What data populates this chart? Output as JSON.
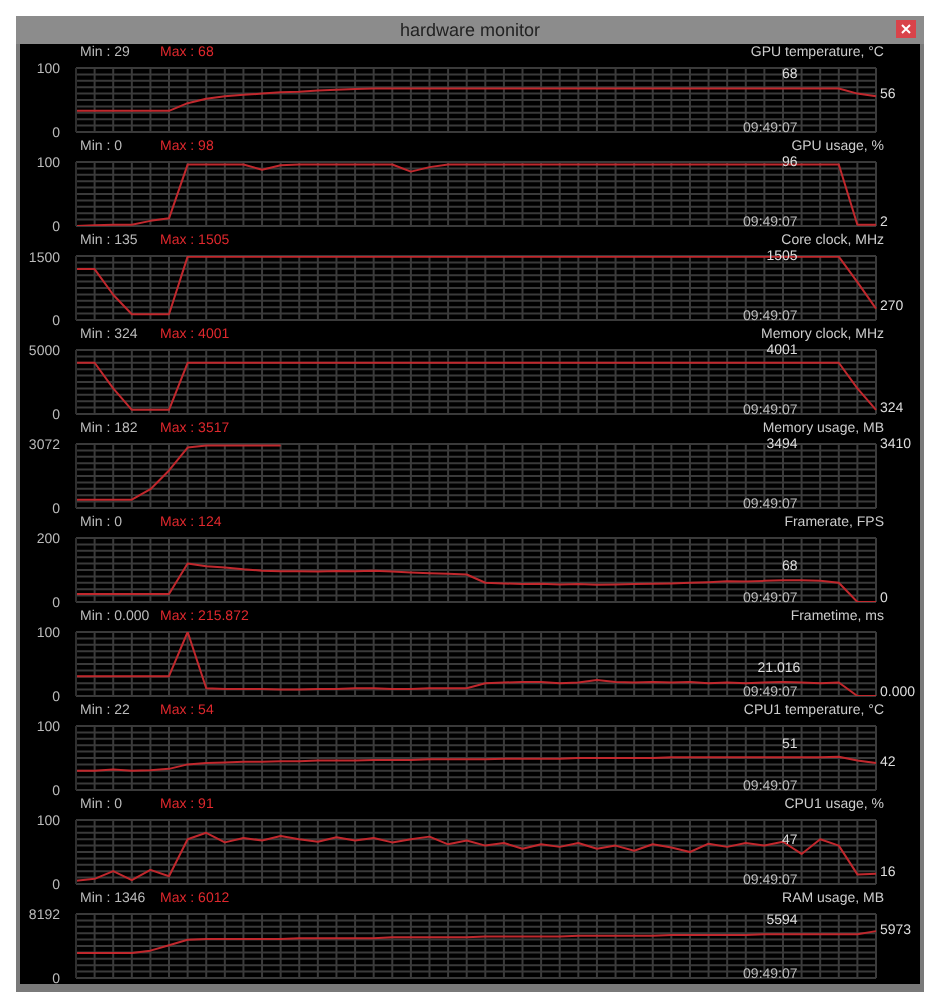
{
  "chart_data": [
    {
      "type": "line",
      "title": "GPU temperature, °C",
      "subtitle": "hardware monitor",
      "color": "#c0282d",
      "grid": true,
      "tick_labels": "y",
      "ylim": [
        0,
        100
      ],
      "yticks": [
        0,
        100
      ],
      "annotations": [
        "Min : 29",
        "Max : 68",
        "68",
        "56",
        "09:49:07"
      ],
      "categories": [
        null,
        null,
        null,
        null,
        null,
        null,
        null,
        null,
        null,
        null,
        null,
        null,
        null,
        null,
        null,
        null,
        null,
        null,
        null,
        null,
        null,
        null,
        null,
        null,
        null,
        null,
        null,
        null,
        null,
        null,
        null,
        null,
        null,
        null,
        null,
        null,
        null,
        null,
        null,
        null,
        null,
        null,
        null,
        null
      ],
      "values": [
        33,
        33,
        33,
        33,
        33,
        33,
        45,
        52,
        56,
        58,
        60,
        62,
        63,
        65,
        66,
        67,
        68,
        68,
        68,
        68,
        68,
        68,
        68,
        68,
        68,
        68,
        68,
        68,
        68,
        68,
        68,
        68,
        68,
        68,
        68,
        68,
        68,
        68,
        68,
        68,
        68,
        68,
        60,
        56
      ]
    },
    {
      "type": "line",
      "title": "GPU usage, %",
      "color": "#c0282d",
      "grid": true,
      "tick_labels": "y",
      "ylim": [
        0,
        100
      ],
      "yticks": [
        0,
        100
      ],
      "annotations": [
        "Min : 0",
        "Max : 98",
        "96",
        "2",
        "09:49:07"
      ],
      "categories": [
        null,
        null,
        null,
        null,
        null,
        null,
        null,
        null,
        null,
        null,
        null,
        null,
        null,
        null,
        null,
        null,
        null,
        null,
        null,
        null,
        null,
        null,
        null,
        null,
        null,
        null,
        null,
        null,
        null,
        null,
        null,
        null,
        null,
        null,
        null,
        null,
        null,
        null,
        null,
        null,
        null,
        null,
        null,
        null
      ],
      "values": [
        0,
        1,
        2,
        2,
        8,
        12,
        96,
        96,
        96,
        96,
        88,
        95,
        96,
        96,
        96,
        96,
        96,
        96,
        85,
        92,
        96,
        96,
        96,
        96,
        96,
        96,
        96,
        96,
        96,
        96,
        96,
        96,
        96,
        96,
        96,
        96,
        96,
        96,
        96,
        96,
        96,
        96,
        2,
        2
      ]
    },
    {
      "type": "line",
      "title": "Core clock, MHz",
      "color": "#c0282d",
      "grid": true,
      "tick_labels": "y",
      "ylim": [
        0,
        1520
      ],
      "yticks": [
        0,
        1500
      ],
      "annotations": [
        "Min : 135",
        "Max : 1505",
        "1505",
        "270",
        "09:49:07"
      ],
      "categories": [
        null,
        null,
        null,
        null,
        null,
        null,
        null,
        null,
        null,
        null,
        null,
        null,
        null,
        null,
        null,
        null,
        null,
        null,
        null,
        null,
        null,
        null,
        null,
        null,
        null,
        null,
        null,
        null,
        null,
        null,
        null,
        null,
        null,
        null,
        null,
        null,
        null,
        null,
        null,
        null,
        null,
        null,
        null,
        null
      ],
      "values": [
        1210,
        1210,
        600,
        135,
        135,
        135,
        1505,
        1505,
        1505,
        1505,
        1505,
        1505,
        1505,
        1505,
        1505,
        1505,
        1505,
        1505,
        1505,
        1505,
        1505,
        1505,
        1505,
        1505,
        1505,
        1505,
        1505,
        1505,
        1505,
        1505,
        1505,
        1505,
        1505,
        1505,
        1505,
        1505,
        1505,
        1505,
        1505,
        1505,
        1505,
        1505,
        900,
        270
      ]
    },
    {
      "type": "line",
      "title": "Memory clock, MHz",
      "color": "#c0282d",
      "grid": true,
      "tick_labels": "y",
      "ylim": [
        0,
        5000
      ],
      "yticks": [
        0,
        5000
      ],
      "annotations": [
        "Min : 324",
        "Max : 4001",
        "4001",
        "324",
        "09:49:07"
      ],
      "categories": [
        null,
        null,
        null,
        null,
        null,
        null,
        null,
        null,
        null,
        null,
        null,
        null,
        null,
        null,
        null,
        null,
        null,
        null,
        null,
        null,
        null,
        null,
        null,
        null,
        null,
        null,
        null,
        null,
        null,
        null,
        null,
        null,
        null,
        null,
        null,
        null,
        null,
        null,
        null,
        null,
        null,
        null,
        null,
        null
      ],
      "values": [
        4001,
        4001,
        2000,
        324,
        324,
        324,
        4001,
        4001,
        4001,
        4001,
        4001,
        4001,
        4001,
        4001,
        4001,
        4001,
        4001,
        4001,
        4001,
        4001,
        4001,
        4001,
        4001,
        4001,
        4001,
        4001,
        4001,
        4001,
        4001,
        4001,
        4001,
        4001,
        4001,
        4001,
        4001,
        4001,
        4001,
        4001,
        4001,
        4001,
        4001,
        4001,
        2000,
        324
      ]
    },
    {
      "type": "line",
      "title": "Memory usage, MB",
      "color": "#c0282d",
      "grid": true,
      "tick_labels": "y",
      "ylim": [
        0,
        3072
      ],
      "yticks": [
        0,
        3072
      ],
      "annotations": [
        "Min : 182",
        "Max : 3517",
        "3494",
        "3410",
        "09:49:07"
      ],
      "categories": [
        null,
        null,
        null,
        null,
        null,
        null,
        null,
        null,
        null,
        null,
        null,
        null,
        null,
        null,
        null,
        null,
        null,
        null,
        null,
        null,
        null,
        null,
        null,
        null,
        null,
        null,
        null,
        null,
        null,
        null,
        null,
        null,
        null,
        null,
        null,
        null,
        null,
        null,
        null,
        null,
        null,
        null,
        null,
        null
      ],
      "values": [
        400,
        400,
        400,
        400,
        900,
        1800,
        2900,
        3000,
        3000,
        3000,
        3000,
        3000,
        null,
        null,
        null,
        null,
        null,
        null,
        null,
        null,
        null,
        null,
        null,
        null,
        null,
        null,
        null,
        null,
        null,
        null,
        null,
        null,
        null,
        null,
        null,
        null,
        null,
        null,
        null,
        null,
        null,
        null,
        null,
        null
      ]
    },
    {
      "type": "line",
      "title": "Framerate, FPS",
      "color": "#c0282d",
      "grid": true,
      "tick_labels": "y",
      "ylim": [
        0,
        200
      ],
      "yticks": [
        0,
        200
      ],
      "annotations": [
        "Min : 0",
        "Max : 124",
        "68",
        "0",
        "09:49:07"
      ],
      "categories": [
        null,
        null,
        null,
        null,
        null,
        null,
        null,
        null,
        null,
        null,
        null,
        null,
        null,
        null,
        null,
        null,
        null,
        null,
        null,
        null,
        null,
        null,
        null,
        null,
        null,
        null,
        null,
        null,
        null,
        null,
        null,
        null,
        null,
        null,
        null,
        null,
        null,
        null,
        null,
        null,
        null,
        null,
        null,
        null
      ],
      "values": [
        25,
        25,
        25,
        25,
        25,
        25,
        120,
        112,
        108,
        102,
        98,
        96,
        96,
        95,
        97,
        96,
        98,
        95,
        92,
        90,
        88,
        86,
        60,
        58,
        56,
        57,
        55,
        56,
        54,
        55,
        56,
        57,
        58,
        60,
        62,
        65,
        64,
        66,
        68,
        68,
        66,
        60,
        0,
        0
      ]
    },
    {
      "type": "line",
      "title": "Frametime, ms",
      "color": "#c0282d",
      "grid": true,
      "tick_labels": "y",
      "ylim": [
        0,
        100
      ],
      "yticks": [
        0,
        100
      ],
      "annotations": [
        "Min : 0.000",
        "Max : 215.872",
        "21.016",
        "0.000",
        "09:49:07"
      ],
      "categories": [
        null,
        null,
        null,
        null,
        null,
        null,
        null,
        null,
        null,
        null,
        null,
        null,
        null,
        null,
        null,
        null,
        null,
        null,
        null,
        null,
        null,
        null,
        null,
        null,
        null,
        null,
        null,
        null,
        null,
        null,
        null,
        null,
        null,
        null,
        null,
        null,
        null,
        null,
        null,
        null,
        null,
        null,
        null,
        null
      ],
      "values": [
        31,
        31,
        31,
        31,
        31,
        31,
        100,
        12,
        11,
        11,
        11,
        10,
        10,
        11,
        11,
        12,
        12,
        11,
        11,
        12,
        12,
        12,
        20,
        21,
        22,
        22,
        20,
        21,
        25,
        22,
        21,
        22,
        21,
        22,
        20,
        21,
        20,
        21,
        22,
        21,
        20,
        21,
        0,
        0
      ]
    },
    {
      "type": "line",
      "title": "CPU1 temperature, °C",
      "color": "#c0282d",
      "grid": true,
      "tick_labels": "y",
      "ylim": [
        0,
        100
      ],
      "yticks": [
        0,
        100
      ],
      "annotations": [
        "Min : 22",
        "Max : 54",
        "51",
        "42",
        "09:49:07"
      ],
      "categories": [
        null,
        null,
        null,
        null,
        null,
        null,
        null,
        null,
        null,
        null,
        null,
        null,
        null,
        null,
        null,
        null,
        null,
        null,
        null,
        null,
        null,
        null,
        null,
        null,
        null,
        null,
        null,
        null,
        null,
        null,
        null,
        null,
        null,
        null,
        null,
        null,
        null,
        null,
        null,
        null,
        null,
        null,
        null,
        null
      ],
      "values": [
        30,
        30,
        32,
        30,
        31,
        33,
        40,
        42,
        43,
        44,
        44,
        45,
        45,
        46,
        46,
        46,
        47,
        47,
        47,
        48,
        48,
        48,
        48,
        49,
        49,
        49,
        49,
        50,
        50,
        50,
        50,
        50,
        51,
        51,
        51,
        51,
        51,
        51,
        51,
        51,
        51,
        52,
        46,
        42
      ]
    },
    {
      "type": "line",
      "title": "CPU1 usage, %",
      "color": "#c0282d",
      "grid": true,
      "tick_labels": "y",
      "ylim": [
        0,
        100
      ],
      "yticks": [
        0,
        100
      ],
      "annotations": [
        "Min : 0",
        "Max : 91",
        "47",
        "16",
        "09:49:07"
      ],
      "categories": [
        null,
        null,
        null,
        null,
        null,
        null,
        null,
        null,
        null,
        null,
        null,
        null,
        null,
        null,
        null,
        null,
        null,
        null,
        null,
        null,
        null,
        null,
        null,
        null,
        null,
        null,
        null,
        null,
        null,
        null,
        null,
        null,
        null,
        null,
        null,
        null,
        null,
        null,
        null,
        null,
        null,
        null,
        null,
        null
      ],
      "values": [
        5,
        8,
        20,
        6,
        22,
        12,
        70,
        80,
        65,
        72,
        68,
        75,
        70,
        66,
        73,
        68,
        72,
        65,
        70,
        74,
        62,
        68,
        60,
        64,
        55,
        62,
        58,
        64,
        55,
        60,
        52,
        62,
        57,
        50,
        63,
        58,
        64,
        60,
        66,
        47,
        70,
        60,
        15,
        16
      ]
    },
    {
      "type": "line",
      "title": "RAM usage, MB",
      "color": "#c0282d",
      "grid": true,
      "tick_labels": "y",
      "ylim": [
        0,
        8192
      ],
      "yticks": [
        0,
        8192
      ],
      "annotations": [
        "Min : 1346",
        "Max : 6012",
        "5594",
        "5973",
        "09:49:07"
      ],
      "categories": [
        null,
        null,
        null,
        null,
        null,
        null,
        null,
        null,
        null,
        null,
        null,
        null,
        null,
        null,
        null,
        null,
        null,
        null,
        null,
        null,
        null,
        null,
        null,
        null,
        null,
        null,
        null,
        null,
        null,
        null,
        null,
        null,
        null,
        null,
        null,
        null,
        null,
        null,
        null,
        null,
        null,
        null,
        null,
        null
      ],
      "values": [
        3200,
        3200,
        3200,
        3200,
        3500,
        4200,
        4900,
        5000,
        5000,
        5000,
        5000,
        5000,
        5100,
        5100,
        5100,
        5100,
        5100,
        5200,
        5200,
        5200,
        5200,
        5200,
        5300,
        5300,
        5300,
        5300,
        5300,
        5400,
        5400,
        5400,
        5400,
        5400,
        5500,
        5500,
        5500,
        5500,
        5500,
        5600,
        5600,
        5600,
        5600,
        5600,
        5600,
        6000
      ]
    }
  ]
}
